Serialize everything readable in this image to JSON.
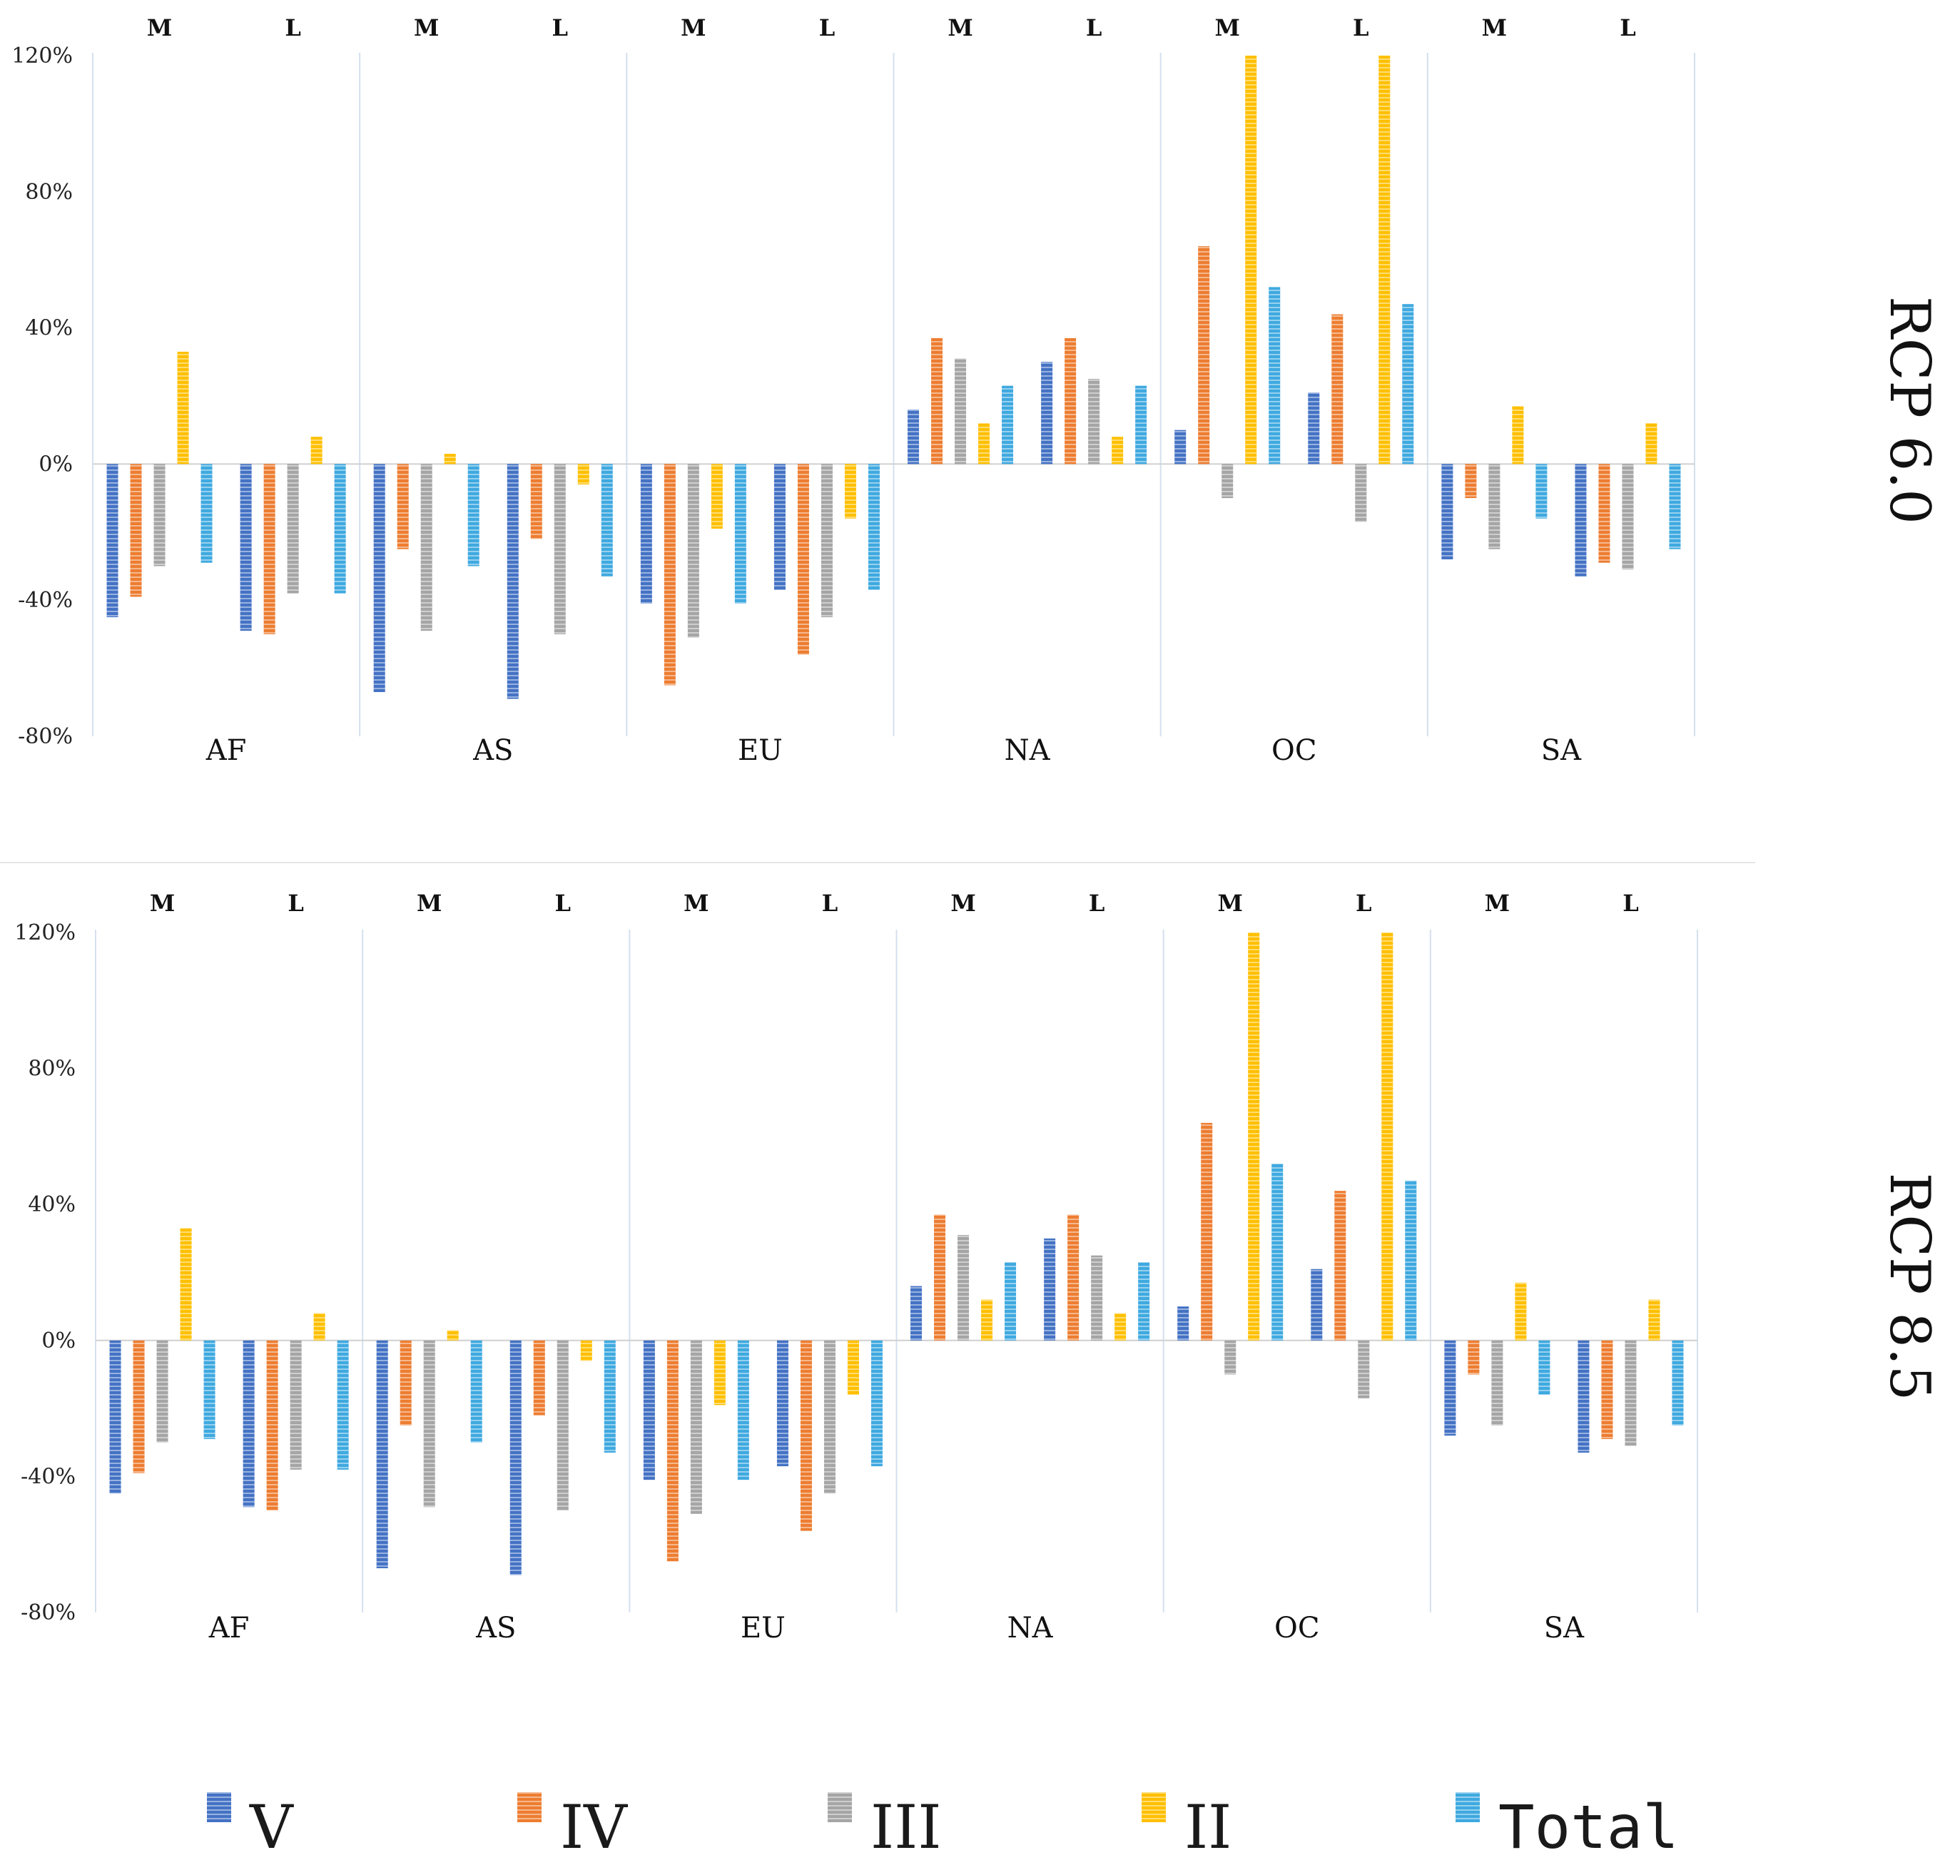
{
  "chart_data": [
    {
      "type": "bar",
      "title": "RCP 6.0",
      "regions": [
        "AF",
        "AS",
        "EU",
        "NA",
        "OC",
        "SA"
      ],
      "periods": [
        "M",
        "L"
      ],
      "y_ticks": [
        "120%",
        "80%",
        "40%",
        "0%",
        "-40%",
        "-80%"
      ],
      "ylim": [
        -80,
        120
      ],
      "series": [
        {
          "name": "V",
          "values": [
            -45,
            -49,
            -67,
            -69,
            -41,
            -37,
            16,
            30,
            10,
            21,
            -28,
            -33
          ]
        },
        {
          "name": "IV",
          "values": [
            -39,
            -50,
            -25,
            -22,
            -65,
            -56,
            37,
            37,
            64,
            44,
            -10,
            -29
          ]
        },
        {
          "name": "III",
          "values": [
            -30,
            -38,
            -49,
            -50,
            -51,
            -45,
            31,
            25,
            -10,
            -17,
            -25,
            -31
          ]
        },
        {
          "name": "II",
          "values": [
            33,
            8,
            3,
            -6,
            -19,
            -16,
            12,
            8,
            120,
            120,
            17,
            12
          ]
        },
        {
          "name": "Total",
          "values": [
            -29,
            -38,
            -30,
            -33,
            -41,
            -37,
            23,
            23,
            52,
            47,
            -16,
            -25
          ]
        }
      ]
    },
    {
      "type": "bar",
      "title": "RCP 8.5",
      "regions": [
        "AF",
        "AS",
        "EU",
        "NA",
        "OC",
        "SA"
      ],
      "periods": [
        "M",
        "L"
      ],
      "y_ticks": [
        "120%",
        "80%",
        "40%",
        "0%",
        "-40%",
        "-80%"
      ],
      "ylim": [
        -80,
        120
      ],
      "series": [
        {
          "name": "V",
          "values": [
            -45,
            -49,
            -67,
            -69,
            -41,
            -37,
            16,
            30,
            10,
            21,
            -28,
            -33
          ]
        },
        {
          "name": "IV",
          "values": [
            -39,
            -50,
            -25,
            -22,
            -65,
            -56,
            37,
            37,
            64,
            44,
            -10,
            -29
          ]
        },
        {
          "name": "III",
          "values": [
            -30,
            -38,
            -49,
            -50,
            -51,
            -45,
            31,
            25,
            -10,
            -17,
            -25,
            -31
          ]
        },
        {
          "name": "II",
          "values": [
            33,
            8,
            3,
            -6,
            -19,
            -16,
            12,
            8,
            120,
            120,
            17,
            12
          ]
        },
        {
          "name": "Total",
          "values": [
            -29,
            -38,
            -30,
            -33,
            -41,
            -37,
            23,
            23,
            52,
            47,
            -16,
            -25
          ]
        }
      ]
    }
  ],
  "legend": [
    {
      "name": "V",
      "color": "#4472C4"
    },
    {
      "name": "IV",
      "color": "#ED7D31"
    },
    {
      "name": "III",
      "color": "#A5A5A5"
    },
    {
      "name": "II",
      "color": "#FFC000"
    },
    {
      "name": "Total",
      "color": "#3FA9E0"
    }
  ]
}
